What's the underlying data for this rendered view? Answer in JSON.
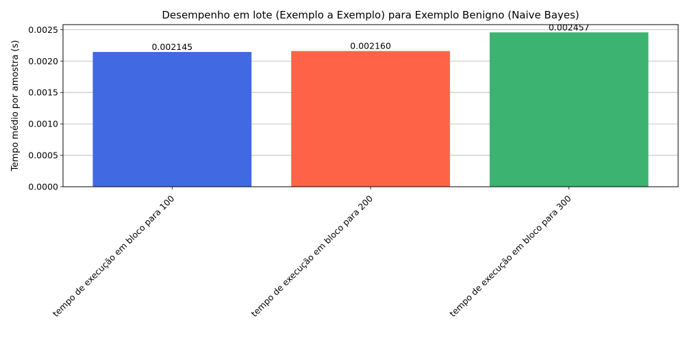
{
  "chart_data": {
    "type": "bar",
    "title": "Desempenho em lote (Exemplo a Exemplo) para Exemplo Benigno (Naive Bayes)",
    "xlabel": "",
    "ylabel": "Tempo médio por amostra (s)",
    "categories": [
      "tempo de execução em bloco para 100",
      "tempo de execução em bloco para 200",
      "tempo de execução em bloco para 300"
    ],
    "values": [
      0.002145,
      0.00216,
      0.002457
    ],
    "data_labels": [
      "0.002145",
      "0.002160",
      "0.002457"
    ],
    "colors": [
      "#4169E1",
      "#FF6347",
      "#3CB371"
    ],
    "ylim": [
      0,
      0.00258
    ],
    "yticks": [
      0,
      0.0005,
      0.001,
      0.0015,
      0.002,
      0.0025
    ],
    "ytick_labels": [
      "0.0000",
      "0.0005",
      "0.0010",
      "0.0015",
      "0.0020",
      "0.0025"
    ],
    "grid": "y",
    "legend": "none"
  }
}
